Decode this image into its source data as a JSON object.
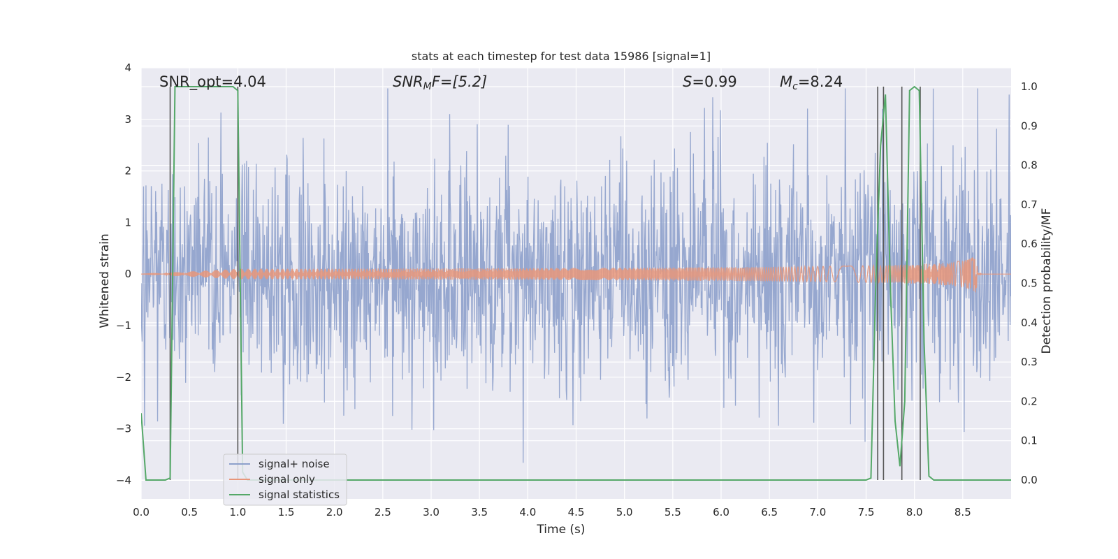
{
  "chart_data": {
    "type": "line",
    "title": "stats at each timestep for test data 15986 [signal=1]",
    "xlabel": "Time (s)",
    "ylabel_left": "Whitened strain",
    "ylabel_right": "Detection probability/MF",
    "xlim": [
      0,
      9.0
    ],
    "ylim_left": [
      -4.36,
      4.0
    ],
    "ylim_right": [
      -0.048,
      1.048
    ],
    "grid": true,
    "legend_location": "lower-left",
    "x_ticks": [
      "0.0",
      "0.5",
      "1.0",
      "1.5",
      "2.0",
      "2.5",
      "3.0",
      "3.5",
      "4.0",
      "4.5",
      "5.0",
      "5.5",
      "6.0",
      "6.5",
      "7.0",
      "7.5",
      "8.0",
      "8.5"
    ],
    "y_ticks_left": [
      "−4",
      "−3",
      "−2",
      "−1",
      "0",
      "1",
      "2",
      "3",
      "4"
    ],
    "y_ticks_right": [
      "0.0",
      "0.1",
      "0.2",
      "0.3",
      "0.4",
      "0.5",
      "0.6",
      "0.7",
      "0.8",
      "0.9",
      "1.0"
    ],
    "annotations": {
      "snr_opt": "SNR_opt=4.04",
      "snr_mf_main": "SNR",
      "snr_mf_sub": "M",
      "snr_mf_rest": "F=[5.2]",
      "s_main": "S",
      "s_rest": "=0.99",
      "mc_main": "M",
      "mc_sub": "c",
      "mc_rest": "=8.24"
    },
    "series": [
      {
        "name": "signal+ noise",
        "color": "#8da0cb",
        "axis": "left",
        "kind": "noise",
        "std": 1.0,
        "range": [
          -4.0,
          3.6
        ],
        "samples": 1800
      },
      {
        "name": "signal only",
        "color": "#e8967a",
        "axis": "left",
        "kind": "chirp",
        "peak_time": 8.65,
        "peak_amplitude": 0.45
      },
      {
        "name": "signal statistics",
        "color": "#55a868",
        "axis": "right",
        "x": [
          0.0,
          0.05,
          0.1,
          0.15,
          0.2,
          0.25,
          0.3,
          0.35,
          0.4,
          0.5,
          0.6,
          0.7,
          0.8,
          0.9,
          0.95,
          1.0,
          1.05,
          1.1,
          7.5,
          7.55,
          7.6,
          7.65,
          7.7,
          7.75,
          7.8,
          7.85,
          7.9,
          7.95,
          8.0,
          8.05,
          8.1,
          8.15,
          8.2,
          8.25,
          8.3,
          8.5,
          9.0
        ],
        "y": [
          0.17,
          0.0,
          0.0,
          0.0,
          0.0,
          0.0,
          0.005,
          1.0,
          1.0,
          1.0,
          1.0,
          1.0,
          1.0,
          1.0,
          1.0,
          0.99,
          0.02,
          0.0,
          0.0,
          0.005,
          0.5,
          0.85,
          0.98,
          0.5,
          0.15,
          0.035,
          0.2,
          0.99,
          1.0,
          0.99,
          0.35,
          0.01,
          0.0,
          0.0,
          0.0,
          0.0,
          0.0
        ]
      }
    ],
    "vertical_lines": [
      0.3,
      1.0,
      7.62,
      7.68,
      7.87,
      8.06
    ],
    "vertical_lines_color": "#555555"
  }
}
